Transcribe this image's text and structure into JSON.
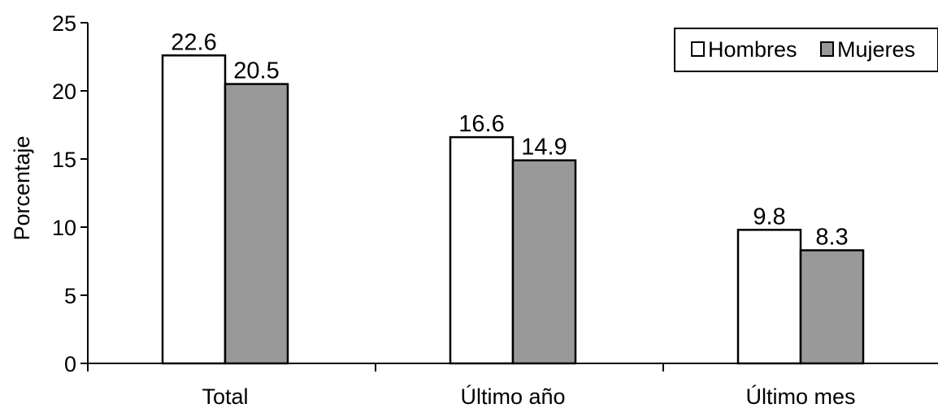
{
  "chart_data": {
    "type": "bar",
    "title": "",
    "xlabel": "",
    "ylabel": "Porcentaje",
    "ylim": [
      0,
      25
    ],
    "yticks": [
      0,
      5,
      10,
      15,
      20,
      25
    ],
    "categories": [
      "Total",
      "Último año",
      "Último mes"
    ],
    "series": [
      {
        "name": "Hombres",
        "values": [
          22.6,
          16.6,
          9.8
        ],
        "labels": [
          "22.6",
          "16.6",
          "9.8"
        ],
        "color": "#ffffff"
      },
      {
        "name": "Mujeres",
        "values": [
          20.5,
          14.9,
          8.3
        ],
        "labels": [
          "20.5",
          "14.9",
          "8.3"
        ],
        "color": "#999999"
      }
    ],
    "legend_position": "top-right",
    "grid": false
  }
}
